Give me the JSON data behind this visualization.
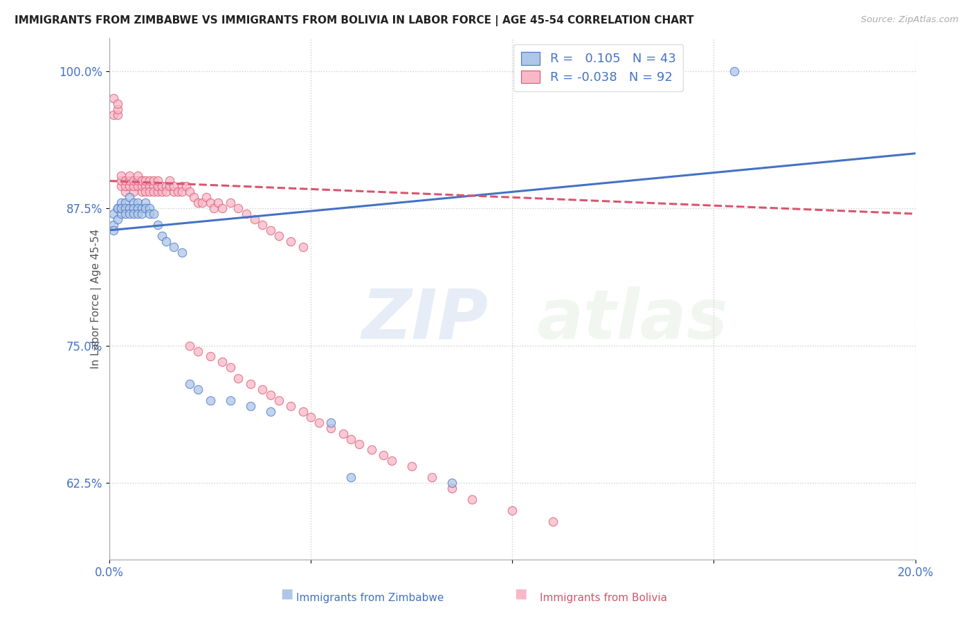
{
  "title": "IMMIGRANTS FROM ZIMBABWE VS IMMIGRANTS FROM BOLIVIA IN LABOR FORCE | AGE 45-54 CORRELATION CHART",
  "source": "Source: ZipAtlas.com",
  "ylabel": "In Labor Force | Age 45-54",
  "xlim": [
    0.0,
    0.2
  ],
  "ylim": [
    0.555,
    1.03
  ],
  "yticks": [
    0.625,
    0.75,
    0.875,
    1.0
  ],
  "yticklabels": [
    "62.5%",
    "75.0%",
    "87.5%",
    "100.0%"
  ],
  "color_zimbabwe": "#aec6e8",
  "color_bolivia": "#f9b8c8",
  "trendline_zimbabwe_color": "#4472c4",
  "trendline_bolivia_color": "#d9546e",
  "watermark_zip": "ZIP",
  "watermark_atlas": "atlas",
  "zimbabwe_x": [
    0.001,
    0.001,
    0.001,
    0.002,
    0.002,
    0.002,
    0.003,
    0.003,
    0.003,
    0.004,
    0.004,
    0.004,
    0.005,
    0.005,
    0.005,
    0.006,
    0.006,
    0.006,
    0.007,
    0.007,
    0.007,
    0.008,
    0.008,
    0.009,
    0.009,
    0.01,
    0.01,
    0.011,
    0.012,
    0.013,
    0.014,
    0.016,
    0.018,
    0.02,
    0.022,
    0.025,
    0.03,
    0.035,
    0.04,
    0.055,
    0.06,
    0.085,
    0.155
  ],
  "zimbabwe_y": [
    0.87,
    0.86,
    0.855,
    0.875,
    0.865,
    0.875,
    0.88,
    0.87,
    0.875,
    0.88,
    0.875,
    0.87,
    0.885,
    0.875,
    0.87,
    0.88,
    0.875,
    0.87,
    0.88,
    0.875,
    0.87,
    0.875,
    0.87,
    0.88,
    0.875,
    0.875,
    0.87,
    0.87,
    0.86,
    0.85,
    0.845,
    0.84,
    0.835,
    0.715,
    0.71,
    0.7,
    0.7,
    0.695,
    0.69,
    0.68,
    0.63,
    0.625,
    1.0
  ],
  "bolivia_x": [
    0.001,
    0.001,
    0.002,
    0.002,
    0.002,
    0.003,
    0.003,
    0.003,
    0.004,
    0.004,
    0.004,
    0.005,
    0.005,
    0.005,
    0.006,
    0.006,
    0.006,
    0.007,
    0.007,
    0.007,
    0.008,
    0.008,
    0.008,
    0.009,
    0.009,
    0.009,
    0.01,
    0.01,
    0.01,
    0.011,
    0.011,
    0.011,
    0.012,
    0.012,
    0.012,
    0.013,
    0.013,
    0.014,
    0.014,
    0.015,
    0.015,
    0.016,
    0.016,
    0.017,
    0.018,
    0.018,
    0.019,
    0.02,
    0.021,
    0.022,
    0.023,
    0.024,
    0.025,
    0.026,
    0.027,
    0.028,
    0.03,
    0.032,
    0.034,
    0.036,
    0.038,
    0.04,
    0.042,
    0.045,
    0.048,
    0.02,
    0.022,
    0.025,
    0.028,
    0.03,
    0.032,
    0.035,
    0.038,
    0.04,
    0.042,
    0.045,
    0.048,
    0.05,
    0.052,
    0.055,
    0.058,
    0.06,
    0.062,
    0.065,
    0.068,
    0.07,
    0.075,
    0.08,
    0.085,
    0.09,
    0.1,
    0.11
  ],
  "bolivia_y": [
    0.96,
    0.975,
    0.96,
    0.965,
    0.97,
    0.895,
    0.9,
    0.905,
    0.89,
    0.895,
    0.9,
    0.895,
    0.9,
    0.905,
    0.89,
    0.895,
    0.9,
    0.895,
    0.9,
    0.905,
    0.89,
    0.895,
    0.9,
    0.895,
    0.89,
    0.9,
    0.895,
    0.89,
    0.9,
    0.895,
    0.89,
    0.9,
    0.89,
    0.895,
    0.9,
    0.89,
    0.895,
    0.895,
    0.89,
    0.895,
    0.9,
    0.89,
    0.895,
    0.89,
    0.895,
    0.89,
    0.895,
    0.89,
    0.885,
    0.88,
    0.88,
    0.885,
    0.88,
    0.875,
    0.88,
    0.875,
    0.88,
    0.875,
    0.87,
    0.865,
    0.86,
    0.855,
    0.85,
    0.845,
    0.84,
    0.75,
    0.745,
    0.74,
    0.735,
    0.73,
    0.72,
    0.715,
    0.71,
    0.705,
    0.7,
    0.695,
    0.69,
    0.685,
    0.68,
    0.675,
    0.67,
    0.665,
    0.66,
    0.655,
    0.65,
    0.645,
    0.64,
    0.63,
    0.62,
    0.61,
    0.6,
    0.59
  ],
  "trendline_zim_x0": 0.0,
  "trendline_zim_y0": 0.855,
  "trendline_zim_x1": 0.2,
  "trendline_zim_y1": 0.925,
  "trendline_bol_x0": 0.0,
  "trendline_bol_y0": 0.9,
  "trendline_bol_x1": 0.2,
  "trendline_bol_y1": 0.87
}
